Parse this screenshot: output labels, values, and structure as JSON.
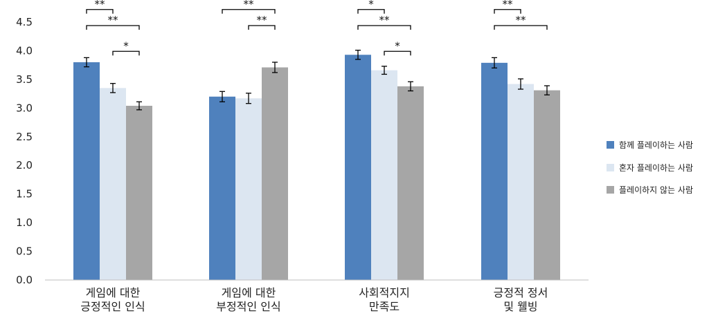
{
  "chart_data": {
    "type": "bar",
    "categories": [
      [
        "게임에 대한",
        "긍정적인 인식"
      ],
      [
        "게임에 대한",
        "부정적인 인식"
      ],
      [
        "사회적지지",
        "만족도"
      ],
      [
        "긍정적 정서",
        "및 웰빙"
      ]
    ],
    "series": [
      {
        "name": "함께 플레이하는 사람",
        "color": "#4f81bd",
        "values": [
          3.8,
          3.2,
          3.93,
          3.79
        ],
        "errors": [
          0.08,
          0.09,
          0.08,
          0.09
        ]
      },
      {
        "name": "혼자 플레이하는 사람",
        "color": "#dce6f1",
        "values": [
          3.35,
          3.17,
          3.66,
          3.42
        ],
        "errors": [
          0.08,
          0.09,
          0.07,
          0.09
        ]
      },
      {
        "name": "플레이하지 않는 사람",
        "color": "#a6a6a6",
        "values": [
          3.04,
          3.71,
          3.38,
          3.31
        ],
        "errors": [
          0.07,
          0.09,
          0.08,
          0.08
        ]
      }
    ],
    "ylim": [
      0,
      4.5
    ],
    "yticks": [
      "0.0",
      "0.5",
      "1.0",
      "1.5",
      "2.0",
      "2.5",
      "3.0",
      "3.5",
      "4.0",
      "4.5"
    ],
    "grid": false,
    "legend_position": "right",
    "significance": [
      {
        "category": 0,
        "from": 0,
        "to": 1,
        "label": "**",
        "level": 4.72
      },
      {
        "category": 0,
        "from": 0,
        "to": 2,
        "label": "**",
        "level": 4.44
      },
      {
        "category": 0,
        "from": 1,
        "to": 2,
        "label": "*",
        "level": 3.99
      },
      {
        "category": 1,
        "from": 0,
        "to": 2,
        "label": "**",
        "level": 4.72
      },
      {
        "category": 1,
        "from": 1,
        "to": 2,
        "label": "**",
        "level": 4.44
      },
      {
        "category": 2,
        "from": 0,
        "to": 1,
        "label": "*",
        "level": 4.72
      },
      {
        "category": 2,
        "from": 0,
        "to": 2,
        "label": "**",
        "level": 4.44
      },
      {
        "category": 2,
        "from": 1,
        "to": 2,
        "label": "*",
        "level": 3.99
      },
      {
        "category": 3,
        "from": 0,
        "to": 1,
        "label": "**",
        "level": 4.72
      },
      {
        "category": 3,
        "from": 0,
        "to": 2,
        "label": "**",
        "level": 4.44
      }
    ]
  }
}
